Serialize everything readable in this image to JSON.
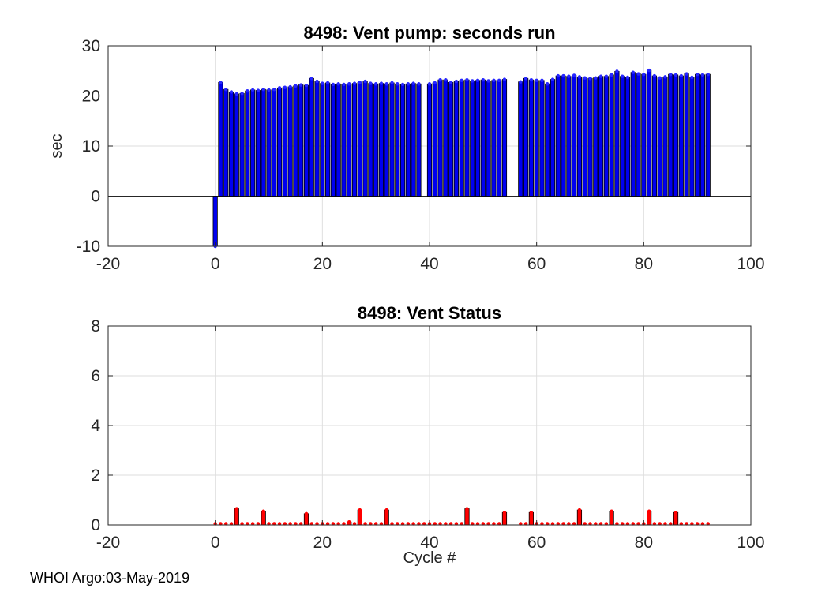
{
  "figure": {
    "footer": "WHOI Argo:03-May-2019",
    "background": "#ffffff",
    "axis_color": "#262626",
    "grid_color": "#dedede"
  },
  "chart_data": [
    {
      "type": "bar",
      "title": "8498: Vent pump: seconds run",
      "xlabel": "",
      "ylabel": "sec",
      "xlim": [
        -20,
        100
      ],
      "ylim": [
        -10,
        30
      ],
      "xticks": [
        -20,
        0,
        20,
        40,
        60,
        80,
        100
      ],
      "yticks": [
        -10,
        0,
        10,
        20,
        30
      ],
      "grid": true,
      "legend_position": "none",
      "bar_color": "#0000f0",
      "marker_color": "#2727ff",
      "bar_edge_color": "#000000",
      "x": [
        0,
        1,
        2,
        3,
        4,
        5,
        6,
        7,
        8,
        9,
        10,
        11,
        12,
        13,
        14,
        15,
        16,
        17,
        18,
        19,
        20,
        21,
        22,
        23,
        24,
        25,
        26,
        27,
        28,
        29,
        30,
        31,
        32,
        33,
        34,
        35,
        36,
        37,
        38,
        39,
        40,
        41,
        42,
        43,
        44,
        45,
        46,
        47,
        48,
        49,
        50,
        51,
        52,
        53,
        54,
        57,
        58,
        59,
        60,
        61,
        62,
        63,
        64,
        65,
        66,
        67,
        68,
        69,
        70,
        71,
        72,
        73,
        74,
        75,
        76,
        77,
        78,
        79,
        80,
        81,
        82,
        83,
        84,
        85,
        86,
        87,
        88,
        89,
        90,
        91,
        92
      ],
      "values": [
        -10,
        22.7,
        21.3,
        20.8,
        20.4,
        20.5,
        21.0,
        21.2,
        21.1,
        21.3,
        21.2,
        21.3,
        21.6,
        21.7,
        21.8,
        22.0,
        22.2,
        22.1,
        23.5,
        22.9,
        22.5,
        22.6,
        22.3,
        22.4,
        22.3,
        22.4,
        22.5,
        22.7,
        22.9,
        22.5,
        22.4,
        22.5,
        22.4,
        22.6,
        22.4,
        22.3,
        22.4,
        22.5,
        22.4,
        0,
        22.4,
        22.6,
        23.2,
        23.2,
        22.7,
        22.9,
        23.1,
        23.2,
        23.0,
        23.1,
        23.2,
        23.0,
        23.1,
        23.1,
        23.3,
        22.8,
        23.5,
        23.2,
        23.1,
        23.1,
        22.4,
        23.3,
        24.0,
        24.0,
        23.9,
        24.1,
        23.8,
        23.6,
        23.5,
        23.6,
        23.9,
        23.9,
        24.2,
        24.9,
        23.9,
        23.7,
        24.7,
        24.4,
        24.3,
        25.1,
        24.0,
        23.6,
        23.8,
        24.3,
        24.2,
        24.0,
        24.4,
        23.7,
        24.3,
        24.2,
        24.3
      ]
    },
    {
      "type": "bar",
      "title": "8498: Vent Status",
      "xlabel": "Cycle #",
      "ylabel": "",
      "xlim": [
        -20,
        100
      ],
      "ylim": [
        0,
        8
      ],
      "xticks": [
        -20,
        0,
        20,
        40,
        60,
        80,
        100
      ],
      "yticks": [
        0,
        2,
        4,
        6,
        8
      ],
      "grid": true,
      "legend_position": "none",
      "bar_color": "#ff0000",
      "marker_color": "#ff0000",
      "bar_edge_color": "#000000",
      "x": [
        0,
        1,
        2,
        3,
        4,
        5,
        6,
        7,
        8,
        9,
        10,
        11,
        12,
        13,
        14,
        15,
        16,
        17,
        18,
        19,
        20,
        21,
        22,
        23,
        24,
        25,
        26,
        27,
        28,
        29,
        30,
        31,
        32,
        33,
        34,
        35,
        36,
        37,
        38,
        39,
        40,
        41,
        42,
        43,
        44,
        45,
        46,
        47,
        48,
        49,
        50,
        51,
        52,
        53,
        54,
        57,
        58,
        59,
        60,
        61,
        62,
        63,
        64,
        65,
        66,
        67,
        68,
        69,
        70,
        71,
        72,
        73,
        74,
        75,
        76,
        77,
        78,
        79,
        80,
        81,
        82,
        83,
        84,
        85,
        86,
        87,
        88,
        89,
        90,
        91,
        92
      ],
      "values": [
        0.05,
        0.05,
        0.05,
        0.05,
        0.65,
        0.05,
        0.05,
        0.05,
        0.05,
        0.55,
        0.05,
        0.05,
        0.05,
        0.05,
        0.05,
        0.05,
        0.05,
        0.45,
        0.05,
        0.05,
        0.05,
        0.05,
        0.05,
        0.05,
        0.05,
        0.12,
        0.05,
        0.6,
        0.05,
        0.05,
        0.05,
        0.05,
        0.6,
        0.05,
        0.05,
        0.05,
        0.05,
        0.05,
        0.05,
        0.05,
        0.05,
        0.05,
        0.05,
        0.05,
        0.05,
        0.05,
        0.05,
        0.65,
        0.05,
        0.05,
        0.05,
        0.05,
        0.05,
        0.05,
        0.5,
        0.05,
        0.05,
        0.5,
        0.05,
        0.05,
        0.05,
        0.05,
        0.05,
        0.05,
        0.05,
        0.05,
        0.6,
        0.05,
        0.05,
        0.05,
        0.05,
        0.05,
        0.55,
        0.05,
        0.05,
        0.05,
        0.05,
        0.05,
        0.05,
        0.55,
        0.05,
        0.05,
        0.05,
        0.05,
        0.5,
        0.05,
        0.05,
        0.05,
        0.05,
        0.05,
        0.05
      ]
    }
  ]
}
